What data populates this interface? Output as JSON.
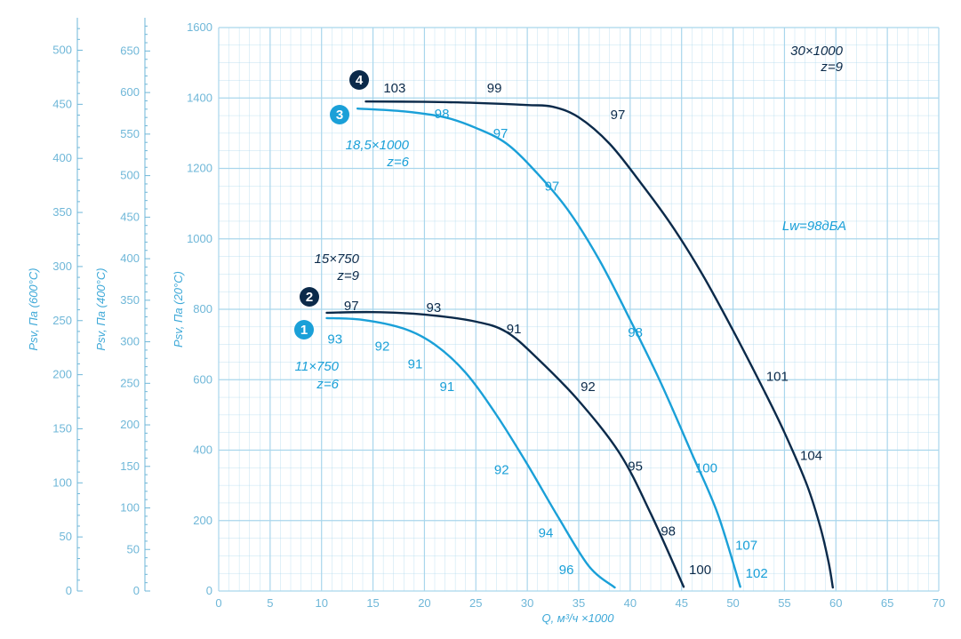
{
  "chart_data": {
    "type": "line",
    "xlabel": "Q, м³/ч ×1000",
    "ylabel": "Psv, Па (20°С)",
    "ylabel_400": "Psv, Па (400°С)",
    "ylabel_600": "Psv, Па (600°С)",
    "xlim": [
      0,
      70
    ],
    "ylim": [
      0,
      1600
    ],
    "x_ticks": [
      "0",
      "5",
      "10",
      "15",
      "20",
      "25",
      "30",
      "35",
      "40",
      "45",
      "50",
      "55",
      "60",
      "65",
      "70"
    ],
    "y_ticks": [
      "0",
      "200",
      "400",
      "600",
      "800",
      "1000",
      "1200",
      "1400",
      "1600"
    ],
    "y_ticks_400": [
      "0",
      "50",
      "100",
      "150",
      "200",
      "250",
      "300",
      "350",
      "400",
      "450",
      "500",
      "550",
      "600",
      "650"
    ],
    "y_ticks_600": [
      "0",
      "50",
      "100",
      "150",
      "200",
      "250",
      "300",
      "350",
      "400",
      "450",
      "500"
    ],
    "grid": true,
    "colors": {
      "dark": "#0b2a4a",
      "light": "#1aa0d8",
      "grid": "#a9d6ec",
      "axis": "#6fb7d8"
    },
    "series": [
      {
        "name": "1",
        "color": "#1aa0d8",
        "x": [
          10.5,
          14,
          18,
          21,
          24,
          27,
          30,
          33,
          36,
          38.5
        ],
        "y": [
          775,
          770,
          745,
          700,
          620,
          500,
          360,
          210,
          70,
          10
        ]
      },
      {
        "name": "2",
        "color": "#0b2a4a",
        "x": [
          10.5,
          15,
          20,
          25,
          28,
          31,
          35,
          39,
          42,
          45.2
        ],
        "y": [
          790,
          792,
          785,
          765,
          735,
          660,
          540,
          390,
          220,
          12
        ]
      },
      {
        "name": "3",
        "color": "#1aa0d8",
        "x": [
          13.5,
          18,
          22,
          25,
          28,
          31,
          34,
          37,
          40,
          43,
          46,
          48.5,
          50.7
        ],
        "y": [
          1370,
          1362,
          1345,
          1315,
          1270,
          1185,
          1080,
          940,
          770,
          590,
          390,
          220,
          12
        ]
      },
      {
        "name": "4",
        "color": "#0b2a4a",
        "x": [
          14.3,
          20,
          25,
          30,
          32.5,
          35,
          38,
          41,
          44,
          47,
          50,
          53,
          55,
          57.2,
          58.5,
          59.3,
          59.7
        ],
        "y": [
          1390,
          1389,
          1386,
          1380,
          1375,
          1345,
          1270,
          1160,
          1040,
          900,
          740,
          570,
          450,
          300,
          180,
          80,
          10
        ]
      }
    ],
    "curve_labels": [
      "1",
      "2",
      "3",
      "4"
    ],
    "annotations": [
      {
        "text": "103",
        "x": 17.1,
        "y": 1428,
        "color": "dark"
      },
      {
        "text": "99",
        "x": 26.8,
        "y": 1428,
        "color": "dark"
      },
      {
        "text": "98",
        "x": 21.7,
        "y": 1355,
        "color": "light"
      },
      {
        "text": "97",
        "x": 38.8,
        "y": 1353,
        "color": "dark"
      },
      {
        "text": "97",
        "x": 27.4,
        "y": 1300,
        "color": "light"
      },
      {
        "text": "97",
        "x": 32.4,
        "y": 1150,
        "color": "light"
      },
      {
        "text": "97",
        "x": 12.9,
        "y": 810,
        "color": "dark"
      },
      {
        "text": "93",
        "x": 20.9,
        "y": 805,
        "color": "dark"
      },
      {
        "text": "91",
        "x": 28.7,
        "y": 745,
        "color": "dark"
      },
      {
        "text": "93",
        "x": 11.3,
        "y": 715,
        "color": "light"
      },
      {
        "text": "92",
        "x": 15.9,
        "y": 695,
        "color": "light"
      },
      {
        "text": "91",
        "x": 19.1,
        "y": 645,
        "color": "light"
      },
      {
        "text": "91",
        "x": 22.2,
        "y": 580,
        "color": "light"
      },
      {
        "text": "92",
        "x": 35.9,
        "y": 580,
        "color": "dark"
      },
      {
        "text": "98",
        "x": 40.5,
        "y": 735,
        "color": "light"
      },
      {
        "text": "92",
        "x": 27.5,
        "y": 345,
        "color": "light"
      },
      {
        "text": "95",
        "x": 40.5,
        "y": 355,
        "color": "dark"
      },
      {
        "text": "100",
        "x": 47.4,
        "y": 350,
        "color": "light"
      },
      {
        "text": "101",
        "x": 54.3,
        "y": 610,
        "color": "dark"
      },
      {
        "text": "104",
        "x": 57.6,
        "y": 385,
        "color": "dark"
      },
      {
        "text": "94",
        "x": 31.8,
        "y": 165,
        "color": "light"
      },
      {
        "text": "98",
        "x": 43.7,
        "y": 170,
        "color": "dark"
      },
      {
        "text": "96",
        "x": 33.8,
        "y": 60,
        "color": "light"
      },
      {
        "text": "100",
        "x": 46.8,
        "y": 60,
        "color": "dark"
      },
      {
        "text": "107",
        "x": 51.3,
        "y": 130,
        "color": "light"
      },
      {
        "text": "102",
        "x": 52.3,
        "y": 50,
        "color": "light"
      }
    ],
    "model_labels": [
      {
        "lines": [
          "30×1000",
          "z=9"
        ],
        "color": "dark"
      },
      {
        "lines": [
          "18,5×1000",
          "z=6"
        ],
        "color": "light"
      },
      {
        "lines": [
          "15×750",
          "z=9"
        ],
        "color": "dark"
      },
      {
        "lines": [
          "11×750",
          "z=6"
        ],
        "color": "light"
      }
    ],
    "lw_label": "Lw=98дБА"
  }
}
